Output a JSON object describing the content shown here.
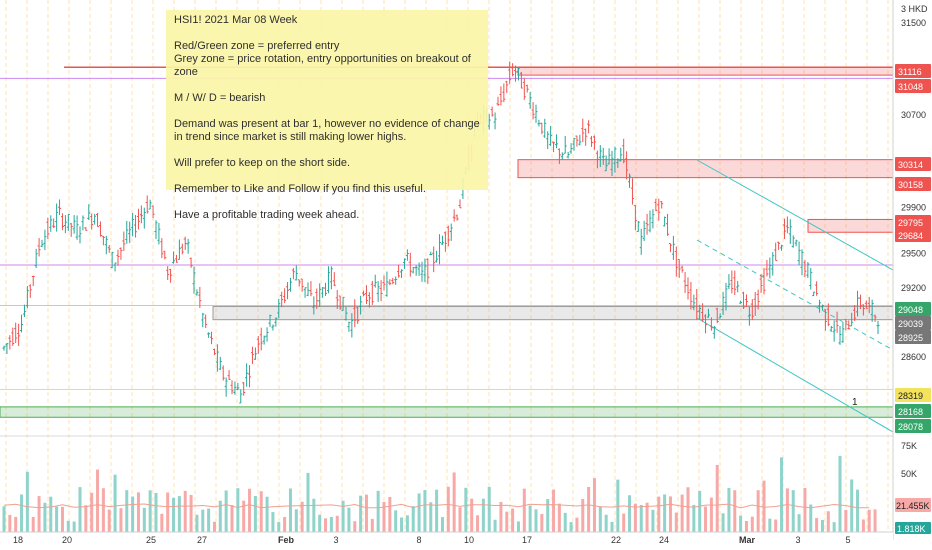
{
  "symbol_label": "3 HKD",
  "note": {
    "title": "HSI1! 2021 Mar 08 Week",
    "line1": "Red/Green zone = preferred entry",
    "line2": "Grey zone = price rotation, entry opportunities on breakout of zone",
    "line3": "M / W/ D = bearish",
    "line4": "Demand was present at bar 1, however no evidence of change in trend since market is still making lower highs.",
    "line5": "Will prefer to keep on the short side.",
    "line6": "Remember to Like and Follow if you find this useful.",
    "line7": "Have a profitable trading week ahead."
  },
  "bar_marker_label": "1",
  "colors": {
    "up": "#26a69a",
    "down": "#ef5350",
    "up_vol": "#8fd3ca",
    "down_vol": "#f6a9a6",
    "red_zone": "#ef5350",
    "green_zone": "#4caf50",
    "grey_zone": "#b0b0b0",
    "channel": "#3ec5c5",
    "session": "#ffe0b2",
    "purple_line": "#cc88ee",
    "yellow_line": "#f0e060",
    "axis_text": "#333333"
  },
  "chart_data": {
    "type": "candlestick",
    "price_axis": {
      "range": [
        27950,
        31700
      ],
      "ticks": [
        31500,
        30700,
        29900,
        29500,
        29200,
        28600
      ]
    },
    "volume_axis": {
      "range": [
        0,
        80000
      ],
      "ticks": [
        "75K",
        "50K"
      ],
      "last_volume": "21.455K",
      "last_tag": "1.818K"
    },
    "x_labels": [
      "18",
      "20",
      "25",
      "27",
      "Feb",
      "3",
      "8",
      "10",
      "17",
      "22",
      "24",
      "Mar",
      "3",
      "5"
    ],
    "price_tags": [
      {
        "label": "31116",
        "kind": "red"
      },
      {
        "label": "31048",
        "kind": "red"
      },
      {
        "label": "30314",
        "kind": "red"
      },
      {
        "label": "30158",
        "kind": "red"
      },
      {
        "label": "29795",
        "kind": "red"
      },
      {
        "label": "29684",
        "kind": "red"
      },
      {
        "label": "29048",
        "kind": "green"
      },
      {
        "label": "29039",
        "kind": "grey"
      },
      {
        "label": "28925",
        "kind": "grey"
      },
      {
        "label": "28319",
        "kind": "yellow"
      },
      {
        "label": "28168",
        "kind": "green"
      },
      {
        "label": "28078",
        "kind": "green"
      }
    ],
    "zones": [
      {
        "kind": "red",
        "from": 31048,
        "to": 31116
      },
      {
        "kind": "red",
        "from": 30158,
        "to": 30314
      },
      {
        "kind": "red",
        "from": 29684,
        "to": 29795
      },
      {
        "kind": "grey",
        "from": 28925,
        "to": 29039
      },
      {
        "kind": "green",
        "from": 28078,
        "to": 28168
      }
    ],
    "horizontal_lines": [
      {
        "kind": "purple",
        "price": 31020
      },
      {
        "kind": "purple",
        "price": 29400
      },
      {
        "kind": "grey",
        "price": 29048
      },
      {
        "kind": "yellow",
        "price": 28319
      }
    ],
    "waypoints": [
      [
        28680,
        28640
      ],
      [
        28900,
        28850
      ],
      [
        29600,
        29530
      ],
      [
        29840,
        29800
      ],
      [
        29700,
        29760
      ],
      [
        29850,
        29820
      ],
      [
        29420,
        29480
      ],
      [
        29700,
        29650
      ],
      [
        29950,
        29900
      ],
      [
        29350,
        29450
      ],
      [
        29600,
        29560
      ],
      [
        28900,
        28950
      ],
      [
        28450,
        28480
      ],
      [
        28280,
        28250
      ],
      [
        28750,
        28700
      ],
      [
        28980,
        28950
      ],
      [
        29350,
        29300
      ],
      [
        29060,
        29120
      ],
      [
        29300,
        29280
      ],
      [
        28880,
        28950
      ],
      [
        29150,
        29100
      ],
      [
        29200,
        29250
      ],
      [
        29450,
        29400
      ],
      [
        29300,
        29350
      ],
      [
        29560,
        29520
      ],
      [
        29900,
        29850
      ],
      [
        30650,
        30600
      ],
      [
        30700,
        30750
      ],
      [
        31120,
        31050
      ],
      [
        30800,
        30850
      ],
      [
        30450,
        30500
      ],
      [
        30350,
        30400
      ],
      [
        30600,
        30550
      ],
      [
        30250,
        30300
      ],
      [
        30400,
        30350
      ],
      [
        29600,
        29700
      ],
      [
        29950,
        29900
      ],
      [
        29400,
        29450
      ],
      [
        29050,
        29100
      ],
      [
        28880,
        28900
      ],
      [
        29250,
        29200
      ],
      [
        29000,
        29050
      ],
      [
        29350,
        29300
      ],
      [
        29720,
        29700
      ],
      [
        29400,
        29450
      ],
      [
        29000,
        29050
      ],
      [
        28780,
        28700
      ],
      [
        29080,
        29000
      ],
      [
        28950,
        28900
      ]
    ]
  }
}
